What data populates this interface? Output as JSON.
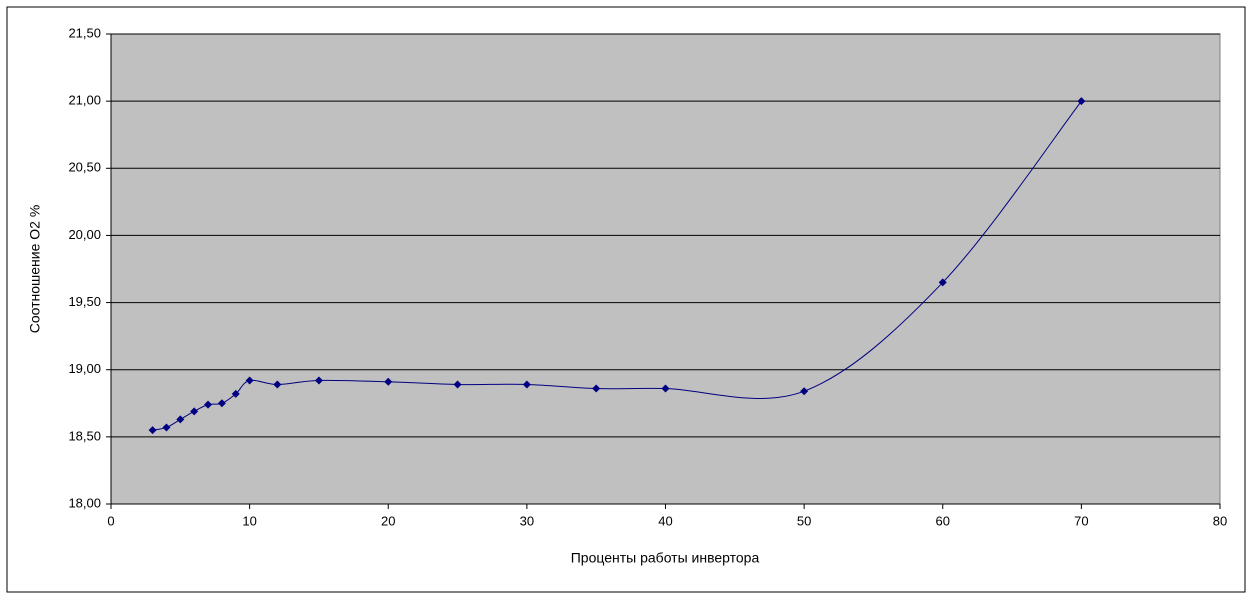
{
  "chart_data": {
    "type": "scatter",
    "smooth": true,
    "color": "#000080",
    "plot_background": "#c0c0c0",
    "grid": true,
    "x_label": "Проценты работы инвертора",
    "y_label": "Соотношение О2 %",
    "x": [
      3,
      4,
      5,
      6,
      7,
      8,
      9,
      10,
      12,
      15,
      20,
      25,
      30,
      35,
      40,
      50,
      60,
      70
    ],
    "values": [
      18.55,
      18.57,
      18.63,
      18.69,
      18.74,
      18.75,
      18.82,
      18.92,
      18.89,
      18.92,
      18.91,
      18.89,
      18.89,
      18.86,
      18.86,
      18.84,
      19.65,
      21.0
    ],
    "xlim": [
      0,
      80
    ],
    "xticks": [
      0,
      10,
      20,
      30,
      40,
      50,
      60,
      70,
      80
    ],
    "ylim": [
      18,
      21.5
    ],
    "yticks": [
      {
        "value": 18,
        "label": "18,00"
      },
      {
        "value": 18.5,
        "label": "18,50"
      },
      {
        "value": 19,
        "label": "19,00"
      },
      {
        "value": 19.5,
        "label": "19,50"
      },
      {
        "value": 20,
        "label": "20,00"
      },
      {
        "value": 20.5,
        "label": "20,50"
      },
      {
        "value": 21,
        "label": "21,00"
      },
      {
        "value": 21.5,
        "label": "21,50"
      }
    ]
  }
}
